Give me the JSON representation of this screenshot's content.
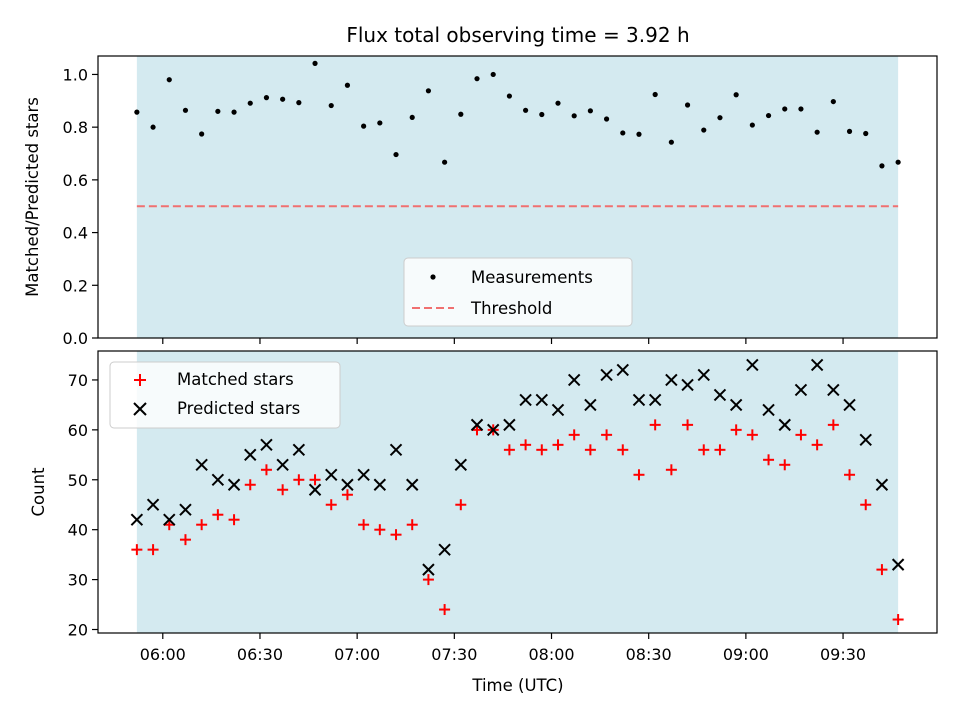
{
  "chart_data": [
    {
      "type": "scatter",
      "title": "Flux total observing time = 3.92 h",
      "xlabel": "",
      "ylabel": "Matched/Predicted stars",
      "ylim": [
        0,
        1.07
      ],
      "yticks": [
        "0.0",
        "0.2",
        "0.4",
        "0.6",
        "0.8",
        "1.0"
      ],
      "yticks_values": [
        0,
        0.2,
        0.4,
        0.6,
        0.8,
        1.0
      ],
      "shaded_span": {
        "start_min": 352,
        "end_min": 587,
        "color": "#d4eaf0"
      },
      "legend": {
        "placement": "lower center",
        "entries": [
          "Measurements",
          "Threshold"
        ]
      },
      "series": [
        {
          "name": "Measurements",
          "marker": "dot",
          "color": "#000000",
          "x_min": [
            352,
            357,
            362,
            367,
            372,
            377,
            382,
            387,
            392,
            397,
            402,
            407,
            412,
            417,
            422,
            427,
            432,
            437,
            442,
            447,
            452,
            457,
            462,
            467,
            472,
            477,
            482,
            487,
            492,
            497,
            502,
            507,
            512,
            517,
            522,
            527,
            532,
            537,
            542,
            547,
            552,
            557,
            562,
            567,
            572,
            577,
            582,
            587
          ],
          "y": [
            0.857,
            0.8,
            0.98,
            0.864,
            0.774,
            0.86,
            0.857,
            0.891,
            0.912,
            0.906,
            0.893,
            1.042,
            0.882,
            0.959,
            0.804,
            0.816,
            0.696,
            0.837,
            0.938,
            0.667,
            0.849,
            0.984,
            1.0,
            0.918,
            0.864,
            0.848,
            0.891,
            0.843,
            0.862,
            0.831,
            0.778,
            0.773,
            0.924,
            0.743,
            0.884,
            0.789,
            0.836,
            0.923,
            0.808,
            0.844,
            0.869,
            0.869,
            0.781,
            0.897,
            0.784,
            0.776,
            0.653,
            0.667
          ]
        },
        {
          "name": "Threshold",
          "style": "dashed",
          "color": "#f07070",
          "x_min": [
            352,
            587
          ],
          "y": [
            0.5,
            0.5
          ]
        }
      ]
    },
    {
      "type": "scatter",
      "title": "",
      "xlabel": "Time (UTC)",
      "ylabel": "Count",
      "ylim": [
        19.3,
        75.8
      ],
      "xlim_min": [
        340,
        599
      ],
      "yticks": [
        "20",
        "30",
        "40",
        "50",
        "60",
        "70"
      ],
      "yticks_values": [
        20,
        30,
        40,
        50,
        60,
        70
      ],
      "xticks": [
        "06:00",
        "06:30",
        "07:00",
        "07:30",
        "08:00",
        "08:30",
        "09:00",
        "09:30"
      ],
      "xticks_min": [
        360,
        390,
        420,
        450,
        480,
        510,
        540,
        570
      ],
      "shaded_span": {
        "start_min": 352,
        "end_min": 587,
        "color": "#d4eaf0"
      },
      "legend": {
        "placement": "upper left",
        "entries": [
          "Matched stars",
          "Predicted stars"
        ]
      },
      "series": [
        {
          "name": "Matched stars",
          "marker": "plus",
          "color": "#ff0000",
          "x_min": [
            352,
            357,
            362,
            367,
            372,
            377,
            382,
            387,
            392,
            397,
            402,
            407,
            412,
            417,
            422,
            427,
            432,
            437,
            442,
            447,
            452,
            457,
            462,
            467,
            472,
            477,
            482,
            487,
            492,
            497,
            502,
            507,
            512,
            517,
            522,
            527,
            532,
            537,
            542,
            547,
            552,
            557,
            562,
            567,
            572,
            577,
            582,
            587
          ],
          "y": [
            36,
            36,
            41,
            38,
            41,
            43,
            42,
            49,
            52,
            48,
            50,
            50,
            45,
            47,
            41,
            40,
            39,
            41,
            30,
            24,
            45,
            60,
            60,
            56,
            57,
            56,
            57,
            59,
            56,
            59,
            56,
            51,
            61,
            52,
            61,
            56,
            56,
            60,
            59,
            54,
            53,
            59,
            57,
            61,
            51,
            45,
            32,
            22
          ]
        },
        {
          "name": "Predicted stars",
          "marker": "x",
          "color": "#000000",
          "x_min": [
            352,
            357,
            362,
            367,
            372,
            377,
            382,
            387,
            392,
            397,
            402,
            407,
            412,
            417,
            422,
            427,
            432,
            437,
            442,
            447,
            452,
            457,
            462,
            467,
            472,
            477,
            482,
            487,
            492,
            497,
            502,
            507,
            512,
            517,
            522,
            527,
            532,
            537,
            542,
            547,
            552,
            557,
            562,
            567,
            572,
            577,
            582,
            587
          ],
          "y": [
            42,
            45,
            42,
            44,
            53,
            50,
            49,
            55,
            57,
            53,
            56,
            48,
            51,
            49,
            51,
            49,
            56,
            49,
            32,
            36,
            53,
            61,
            60,
            61,
            66,
            66,
            64,
            70,
            65,
            71,
            72,
            66,
            66,
            70,
            69,
            71,
            67,
            65,
            73,
            64,
            61,
            68,
            73,
            68,
            65,
            58,
            49,
            33
          ]
        }
      ]
    }
  ]
}
